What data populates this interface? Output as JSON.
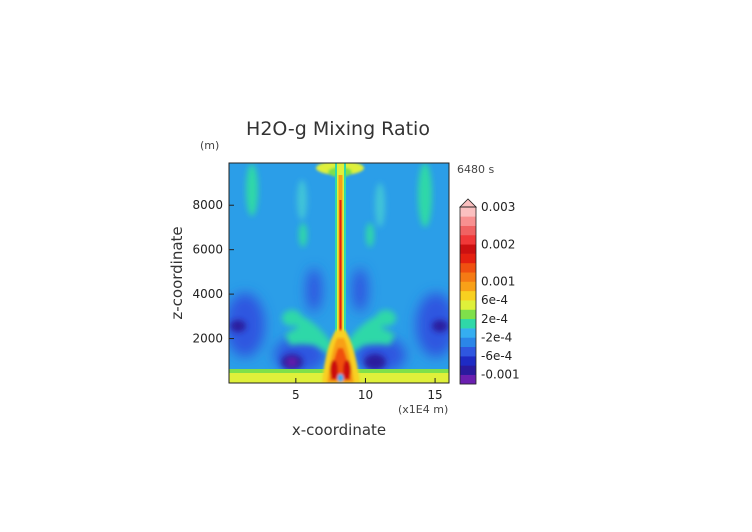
{
  "chart_data": {
    "type": "heatmap",
    "title": "H2O-g Mixing Ratio",
    "xlabel": "x-coordinate",
    "ylabel": "z-coordinate",
    "x_unit": "(x1E4 m)",
    "y_unit": "(m)",
    "time_label": "6480 s",
    "xlim": [
      0.2,
      16
    ],
    "ylim": [
      0,
      9900
    ],
    "x_ticks": [
      {
        "value": 5,
        "label": "5"
      },
      {
        "value": 10,
        "label": "10"
      },
      {
        "value": 15,
        "label": "15"
      }
    ],
    "y_ticks": [
      {
        "value": 2000,
        "label": "2000"
      },
      {
        "value": 4000,
        "label": "4000"
      },
      {
        "value": 6000,
        "label": "6000"
      },
      {
        "value": 8000,
        "label": "8000"
      }
    ],
    "colorbar": {
      "levels": [
        {
          "value": -0.001,
          "color": "#6a1fb0"
        },
        {
          "value": -0.0008,
          "color": "#2a1a9e"
        },
        {
          "value": -0.0006,
          "color": "#1e2bc4"
        },
        {
          "value": -0.0004,
          "color": "#2f57e0"
        },
        {
          "value": -0.0002,
          "color": "#2b86e8"
        },
        {
          "value": 0.0,
          "color": "#35aef0"
        },
        {
          "value": 0.0002,
          "color": "#2fd8a8"
        },
        {
          "value": 0.0004,
          "color": "#7fe04a"
        },
        {
          "value": 0.0006,
          "color": "#dff03a"
        },
        {
          "value": 0.0008,
          "color": "#f8d020"
        },
        {
          "value": 0.001,
          "color": "#f8a018"
        },
        {
          "value": 0.0012,
          "color": "#f57a14"
        },
        {
          "value": 0.0015,
          "color": "#f05010"
        },
        {
          "value": 0.0018,
          "color": "#e42010"
        },
        {
          "value": 0.002,
          "color": "#cc1010"
        },
        {
          "value": 0.0022,
          "color": "#f03838"
        },
        {
          "value": 0.0025,
          "color": "#f06262"
        },
        {
          "value": 0.0028,
          "color": "#f89090"
        },
        {
          "value": 0.003,
          "color": "#fbc0c0"
        }
      ],
      "labels": [
        {
          "value": 0.003,
          "label": "0.003"
        },
        {
          "value": 0.002,
          "label": "0.002"
        },
        {
          "value": 0.001,
          "label": "0.001"
        },
        {
          "value": 0.0006,
          "label": "6e-4"
        },
        {
          "value": 0.0002,
          "label": "2e-4"
        },
        {
          "value": -0.0002,
          "label": "-2e-4"
        },
        {
          "value": -0.0006,
          "label": "-6e-4"
        },
        {
          "value": -0.001,
          "label": "-0.001"
        }
      ]
    },
    "features": [
      {
        "name": "surface-layer",
        "x_range": [
          0.2,
          16
        ],
        "z_range": [
          0,
          300
        ],
        "value": 0.0006
      },
      {
        "name": "central-plume",
        "x_center": 8.1,
        "z_range": [
          0,
          9900
        ],
        "value": 0.0015
      },
      {
        "name": "plume-base-core",
        "x_center": 8.0,
        "z_range": [
          0,
          800
        ],
        "value": 0.002
      },
      {
        "name": "left-dry-pocket",
        "x_center": 6.0,
        "z_center": 1000,
        "value": -0.0008
      },
      {
        "name": "right-dry-pocket",
        "x_center": 10.2,
        "z_center": 1000,
        "value": -0.0008
      },
      {
        "name": "far-left-dry",
        "x_center": 1.0,
        "z_center": 2600,
        "value": -0.0006
      },
      {
        "name": "far-right-dry",
        "x_center": 15.4,
        "z_center": 2600,
        "value": -0.0006
      },
      {
        "name": "top-moist-cap",
        "x_center": 8.1,
        "z_center": 9800,
        "value": 0.0006
      }
    ],
    "grid": false,
    "legend": "right"
  }
}
